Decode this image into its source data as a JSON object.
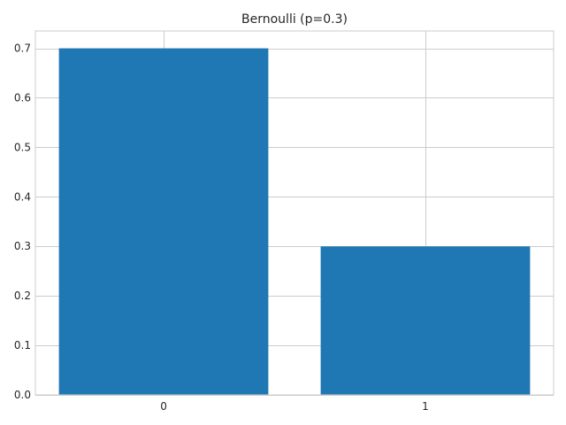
{
  "chart_data": {
    "type": "bar",
    "title": "Bernoulli (p=0.3)",
    "categories": [
      "0",
      "1"
    ],
    "values": [
      0.7,
      0.3
    ],
    "xlabel": "",
    "ylabel": "",
    "ylim": [
      0,
      0.735
    ],
    "yticks": [
      "0.0",
      "0.1",
      "0.2",
      "0.3",
      "0.4",
      "0.5",
      "0.6",
      "0.7"
    ],
    "grid": true,
    "bar_color": "#1f77b4",
    "grid_color": "#cccccc"
  }
}
